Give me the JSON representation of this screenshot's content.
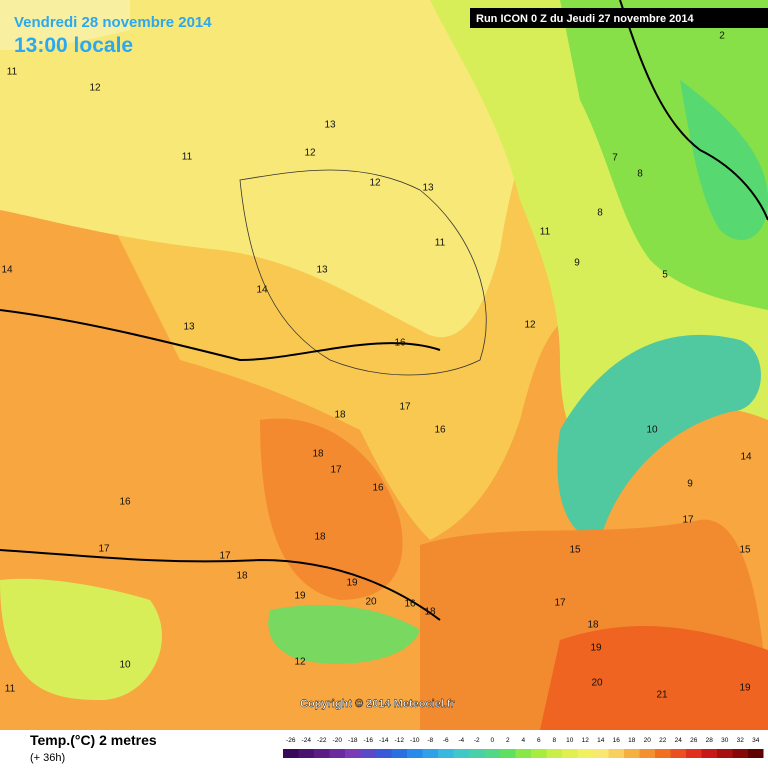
{
  "header": {
    "date": "Vendredi 28 novembre 2014",
    "time": "13:00 locale",
    "run": "Run ICON 0 Z du Jeudi 27 novembre 2014"
  },
  "footer": {
    "variable": "Temp.(°C) 2 metres",
    "lead": "(+ 36h)",
    "copyright": "Copyright © 2014 Meteociel.fr"
  },
  "legend": {
    "values": [
      -26,
      -24,
      -22,
      -20,
      -18,
      -16,
      -14,
      -12,
      -10,
      -8,
      -6,
      -4,
      -2,
      0,
      2,
      4,
      6,
      8,
      10,
      12,
      14,
      16,
      18,
      20,
      22,
      24,
      26,
      28,
      30,
      32,
      34
    ],
    "colors": [
      "#3a0a5a",
      "#4b1370",
      "#5c1c88",
      "#6a2aa0",
      "#7a3ab8",
      "#5a4ac8",
      "#3a5ad8",
      "#2a70e0",
      "#2a8ae8",
      "#30a0e8",
      "#38b8e0",
      "#40c8c8",
      "#48d0a8",
      "#50d888",
      "#60e060",
      "#88e848",
      "#a8ec40",
      "#c8ee48",
      "#e0f050",
      "#f0f060",
      "#f8e870",
      "#f8d060",
      "#f6b040",
      "#f49030",
      "#f07020",
      "#ec5020",
      "#e03020",
      "#c81818",
      "#a81010",
      "#880808",
      "#600000"
    ]
  },
  "contour_labels": [
    11,
    12,
    11,
    13,
    12,
    12,
    13,
    11,
    13,
    14,
    13,
    14,
    16,
    18,
    18,
    17,
    16,
    17,
    16,
    16,
    17,
    17,
    18,
    18,
    19,
    20,
    16,
    18,
    19,
    17,
    18,
    19,
    20,
    21,
    17,
    9,
    10,
    8,
    5,
    2,
    11,
    10,
    12,
    7,
    8,
    9,
    11,
    12,
    15,
    15,
    14,
    19
  ]
}
